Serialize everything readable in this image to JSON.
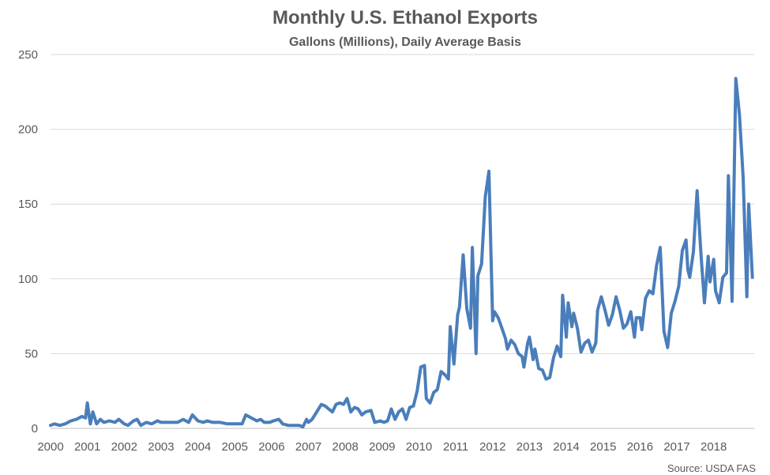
{
  "chart_data": {
    "type": "line",
    "title": "Monthly U.S. Ethanol Exports",
    "subtitle": "Gallons (Millions), Daily Average Basis",
    "source": "Source: USDA FAS",
    "xlabel": "",
    "ylabel": "",
    "xlim": [
      2000,
      2018.67
    ],
    "ylim": [
      0,
      250
    ],
    "yticks": [
      0,
      50,
      100,
      150,
      200,
      250
    ],
    "xticks": [
      "2000",
      "2001",
      "2002",
      "2003",
      "2004",
      "2005",
      "2006",
      "2007",
      "2008",
      "2009",
      "2010",
      "2011",
      "2012",
      "2013",
      "2014",
      "2015",
      "2016",
      "2017",
      "2018"
    ],
    "grid": true,
    "legend": "none",
    "colors": {
      "series": "#4a7ebb",
      "grid": "#d9d9d9",
      "text": "#595959"
    },
    "series": [
      {
        "values": [
          [
            2000.0,
            2
          ],
          [
            2000.1,
            3
          ],
          [
            2000.25,
            2
          ],
          [
            2000.4,
            3
          ],
          [
            2000.55,
            5
          ],
          [
            2000.7,
            6
          ],
          [
            2000.85,
            8
          ],
          [
            2000.95,
            7
          ],
          [
            2001.0,
            17
          ],
          [
            2001.08,
            3
          ],
          [
            2001.15,
            11
          ],
          [
            2001.25,
            3
          ],
          [
            2001.35,
            6
          ],
          [
            2001.45,
            4
          ],
          [
            2001.6,
            5
          ],
          [
            2001.75,
            4
          ],
          [
            2001.85,
            6
          ],
          [
            2002.0,
            3
          ],
          [
            2002.1,
            2
          ],
          [
            2002.25,
            5
          ],
          [
            2002.35,
            6
          ],
          [
            2002.45,
            2
          ],
          [
            2002.6,
            4
          ],
          [
            2002.75,
            3
          ],
          [
            2002.9,
            5
          ],
          [
            2003.0,
            4
          ],
          [
            2003.15,
            4
          ],
          [
            2003.3,
            4
          ],
          [
            2003.45,
            4
          ],
          [
            2003.6,
            6
          ],
          [
            2003.75,
            4
          ],
          [
            2003.85,
            9
          ],
          [
            2004.0,
            5
          ],
          [
            2004.15,
            4
          ],
          [
            2004.25,
            5
          ],
          [
            2004.4,
            4
          ],
          [
            2004.6,
            4
          ],
          [
            2004.8,
            3
          ],
          [
            2005.0,
            3
          ],
          [
            2005.1,
            3
          ],
          [
            2005.2,
            3
          ],
          [
            2005.3,
            9
          ],
          [
            2005.45,
            7
          ],
          [
            2005.6,
            5
          ],
          [
            2005.7,
            6
          ],
          [
            2005.8,
            4
          ],
          [
            2005.95,
            4
          ],
          [
            2006.05,
            5
          ],
          [
            2006.2,
            6
          ],
          [
            2006.3,
            3
          ],
          [
            2006.45,
            2
          ],
          [
            2006.6,
            2
          ],
          [
            2006.75,
            2
          ],
          [
            2006.85,
            1
          ],
          [
            2006.95,
            6
          ],
          [
            2007.0,
            4
          ],
          [
            2007.1,
            6
          ],
          [
            2007.25,
            12
          ],
          [
            2007.35,
            16
          ],
          [
            2007.45,
            15
          ],
          [
            2007.55,
            13
          ],
          [
            2007.65,
            11
          ],
          [
            2007.75,
            16
          ],
          [
            2007.85,
            17
          ],
          [
            2007.95,
            16
          ],
          [
            2008.05,
            20
          ],
          [
            2008.15,
            11
          ],
          [
            2008.25,
            14
          ],
          [
            2008.35,
            13
          ],
          [
            2008.45,
            9
          ],
          [
            2008.55,
            11
          ],
          [
            2008.7,
            12
          ],
          [
            2008.8,
            4
          ],
          [
            2008.95,
            5
          ],
          [
            2009.05,
            4
          ],
          [
            2009.15,
            5
          ],
          [
            2009.25,
            13
          ],
          [
            2009.35,
            6
          ],
          [
            2009.45,
            11
          ],
          [
            2009.55,
            13
          ],
          [
            2009.65,
            6
          ],
          [
            2009.75,
            14
          ],
          [
            2009.85,
            15
          ],
          [
            2009.95,
            25
          ],
          [
            2010.05,
            41
          ],
          [
            2010.15,
            42
          ],
          [
            2010.2,
            20
          ],
          [
            2010.3,
            17
          ],
          [
            2010.4,
            24
          ],
          [
            2010.5,
            26
          ],
          [
            2010.6,
            38
          ],
          [
            2010.7,
            36
          ],
          [
            2010.8,
            33
          ],
          [
            2010.85,
            68
          ],
          [
            2010.95,
            43
          ],
          [
            2011.05,
            76
          ],
          [
            2011.1,
            81
          ],
          [
            2011.2,
            116
          ],
          [
            2011.3,
            80
          ],
          [
            2011.4,
            67
          ],
          [
            2011.45,
            121
          ],
          [
            2011.55,
            50
          ],
          [
            2011.6,
            102
          ],
          [
            2011.7,
            110
          ],
          [
            2011.8,
            155
          ],
          [
            2011.9,
            172
          ],
          [
            2012.0,
            72
          ],
          [
            2012.05,
            78
          ],
          [
            2012.15,
            74
          ],
          [
            2012.25,
            67
          ],
          [
            2012.35,
            60
          ],
          [
            2012.4,
            53
          ],
          [
            2012.5,
            59
          ],
          [
            2012.6,
            56
          ],
          [
            2012.7,
            50
          ],
          [
            2012.8,
            48
          ],
          [
            2012.85,
            41
          ],
          [
            2012.95,
            57
          ],
          [
            2013.0,
            61
          ],
          [
            2013.1,
            46
          ],
          [
            2013.15,
            53
          ],
          [
            2013.25,
            40
          ],
          [
            2013.35,
            39
          ],
          [
            2013.45,
            33
          ],
          [
            2013.55,
            34
          ],
          [
            2013.65,
            47
          ],
          [
            2013.75,
            55
          ],
          [
            2013.85,
            48
          ],
          [
            2013.9,
            89
          ],
          [
            2014.0,
            61
          ],
          [
            2014.05,
            84
          ],
          [
            2014.15,
            68
          ],
          [
            2014.2,
            77
          ],
          [
            2014.3,
            67
          ],
          [
            2014.4,
            51
          ],
          [
            2014.5,
            57
          ],
          [
            2014.6,
            59
          ],
          [
            2014.7,
            51
          ],
          [
            2014.8,
            57
          ],
          [
            2014.85,
            79
          ],
          [
            2014.95,
            88
          ],
          [
            2015.05,
            79
          ],
          [
            2015.15,
            69
          ],
          [
            2015.25,
            76
          ],
          [
            2015.35,
            88
          ],
          [
            2015.45,
            79
          ],
          [
            2015.55,
            67
          ],
          [
            2015.65,
            70
          ],
          [
            2015.75,
            78
          ],
          [
            2015.85,
            61
          ],
          [
            2015.9,
            74
          ],
          [
            2016.0,
            74
          ],
          [
            2016.05,
            66
          ],
          [
            2016.15,
            87
          ],
          [
            2016.25,
            92
          ],
          [
            2016.35,
            90
          ],
          [
            2016.45,
            109
          ],
          [
            2016.55,
            121
          ],
          [
            2016.65,
            65
          ],
          [
            2016.75,
            54
          ],
          [
            2016.85,
            77
          ],
          [
            2016.95,
            85
          ],
          [
            2017.05,
            95
          ],
          [
            2017.15,
            119
          ],
          [
            2017.25,
            126
          ],
          [
            2017.3,
            106
          ],
          [
            2017.35,
            101
          ],
          [
            2017.45,
            118
          ],
          [
            2017.55,
            159
          ],
          [
            2017.65,
            118
          ],
          [
            2017.75,
            84
          ],
          [
            2017.85,
            115
          ],
          [
            2017.9,
            98
          ],
          [
            2018.0,
            113
          ],
          [
            2018.05,
            92
          ],
          [
            2018.15,
            84
          ],
          [
            2018.25,
            101
          ],
          [
            2018.35,
            104
          ],
          [
            2018.4,
            169
          ],
          [
            2018.5,
            85
          ],
          [
            2018.6,
            234
          ],
          [
            2018.7,
            210
          ],
          [
            2018.8,
            168
          ],
          [
            2018.9,
            88
          ],
          [
            2018.95,
            150
          ],
          [
            2019.05,
            101
          ]
        ]
      }
    ]
  }
}
